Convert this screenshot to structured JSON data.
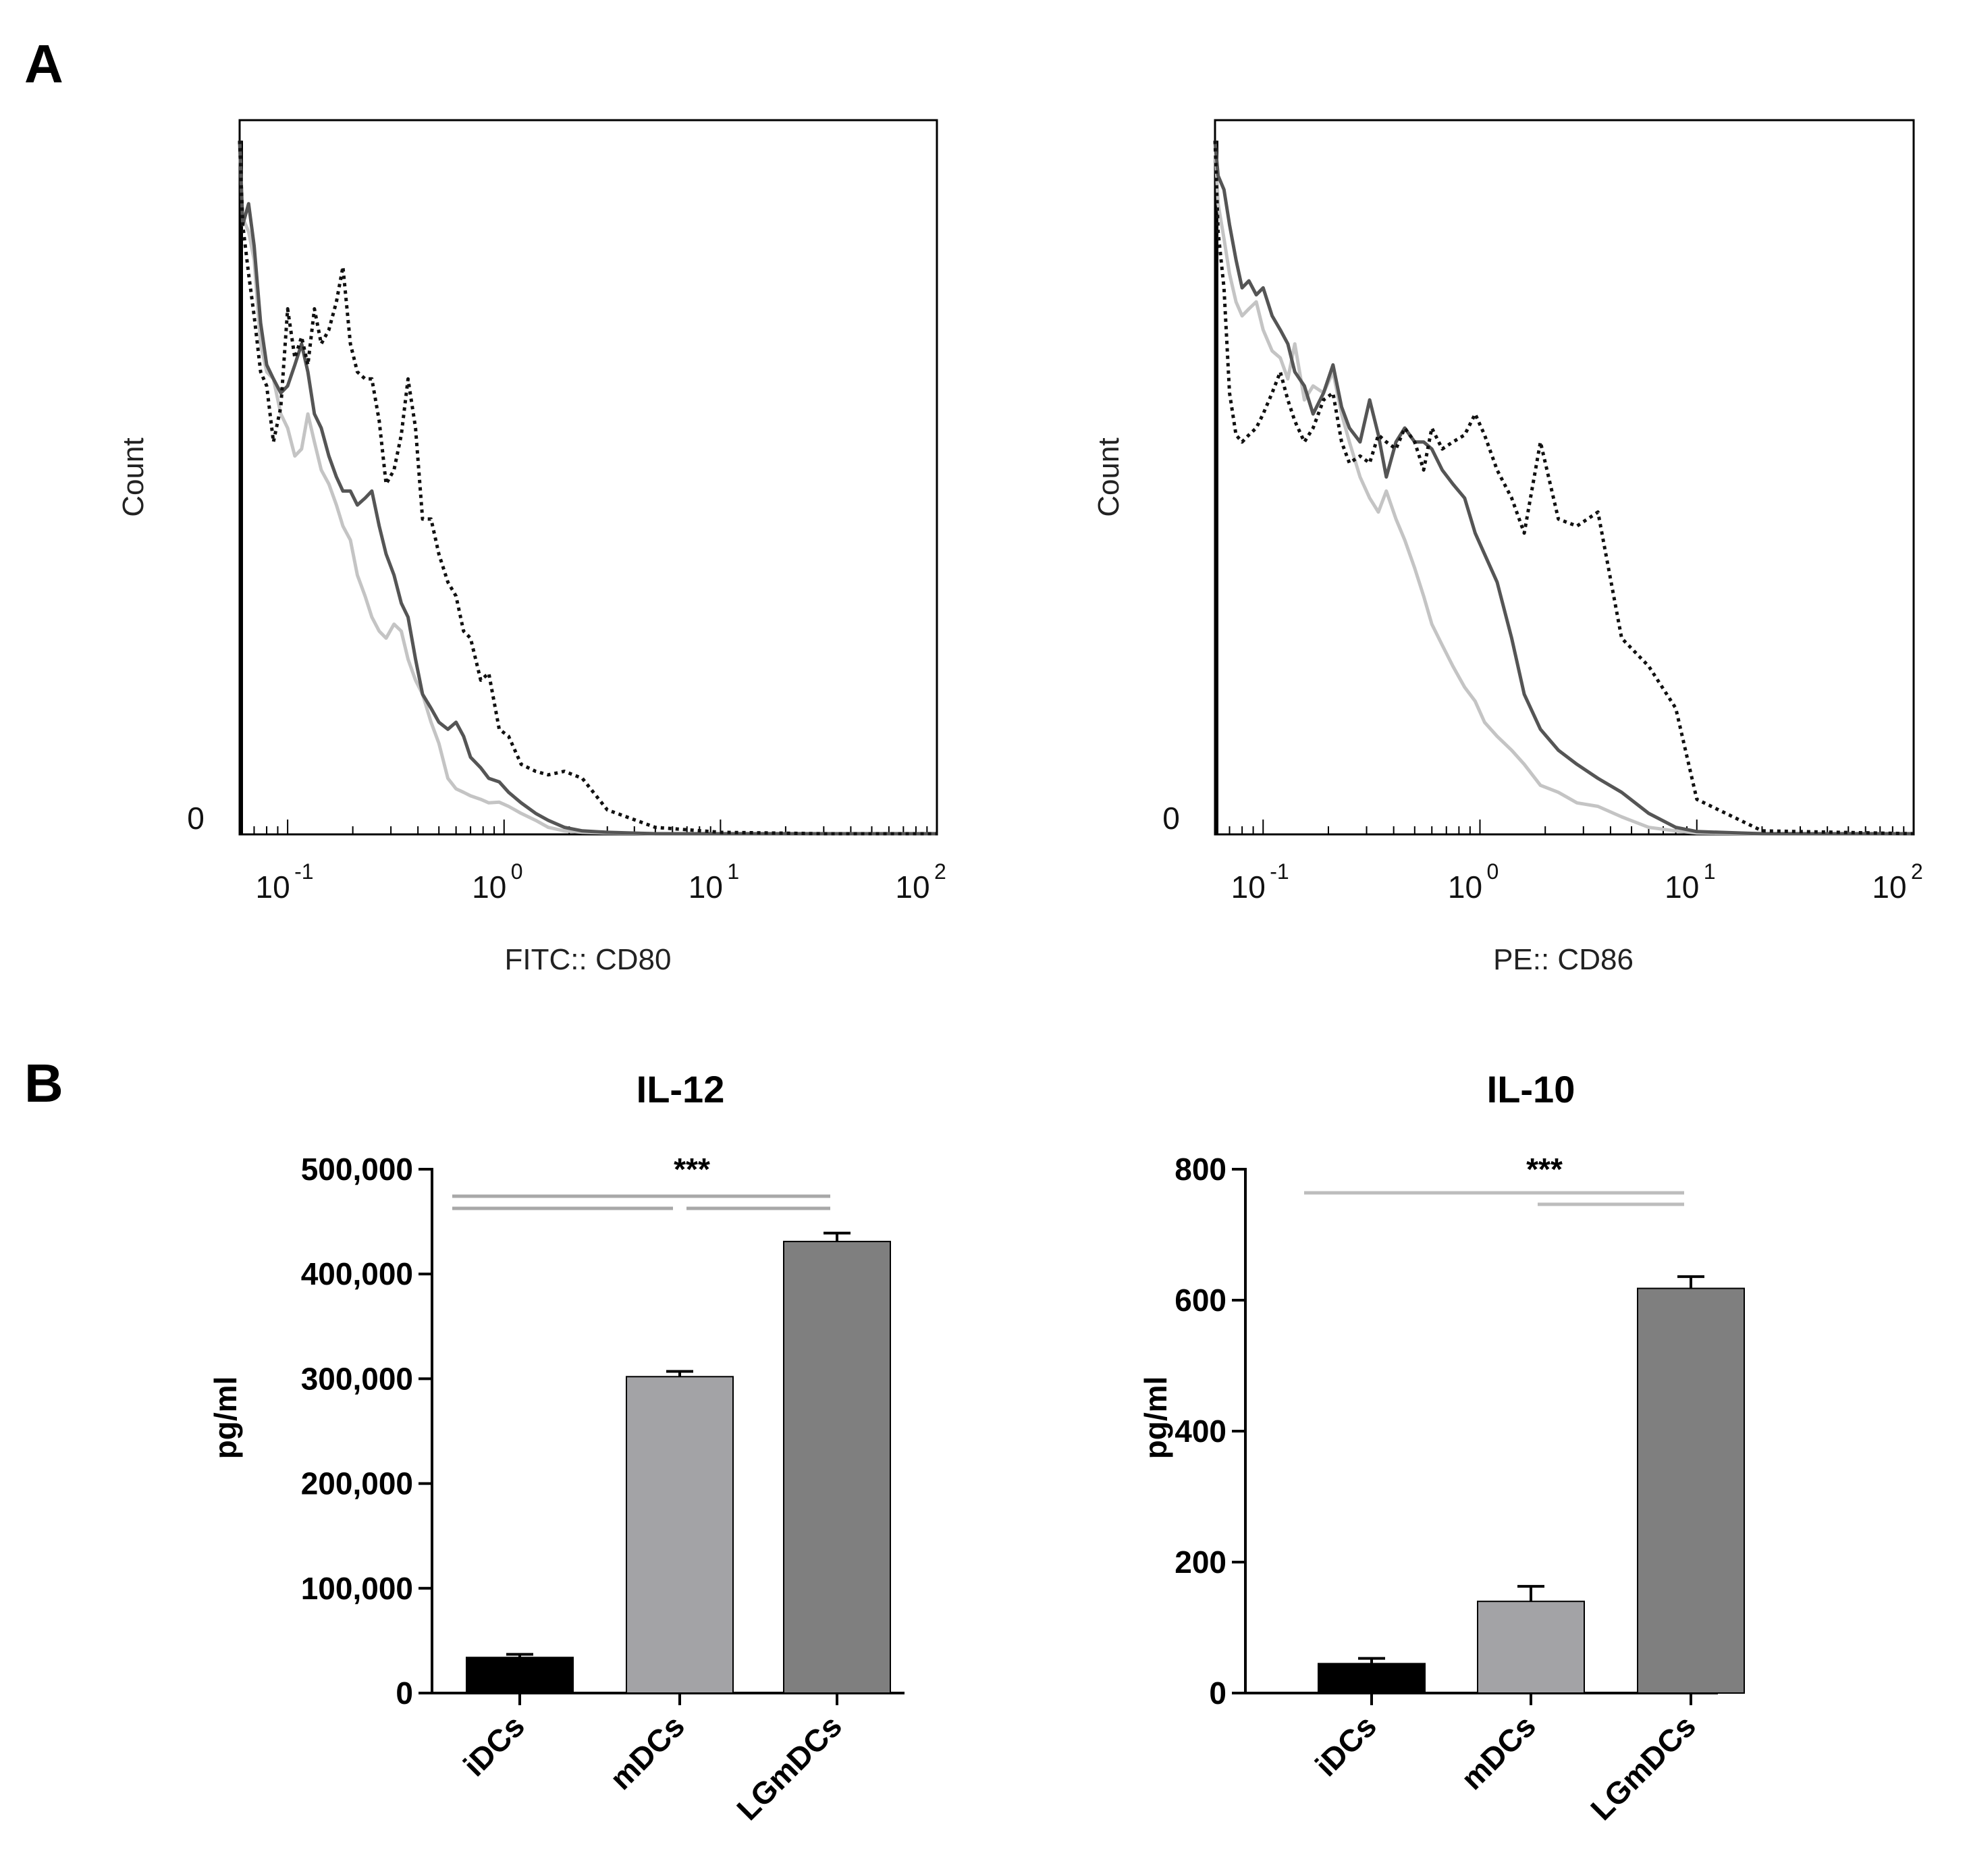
{
  "figure": {
    "panel_a_label": "A",
    "panel_b_label": "B"
  },
  "chart_data": [
    {
      "type": "line",
      "id": "cd80",
      "xlabel": "FITC:: CD80",
      "ylabel": "Count",
      "xscale": "log",
      "xlim": [
        0.06,
        100
      ],
      "ylim": [
        0,
        100
      ],
      "y_tick_label": "0",
      "x_ticks": [
        {
          "base": "10",
          "exp": "-1",
          "value": 0.1
        },
        {
          "base": "10",
          "exp": "0",
          "value": 1
        },
        {
          "base": "10",
          "exp": "1",
          "value": 10
        },
        {
          "base": "10",
          "exp": "2",
          "value": 100
        }
      ],
      "series": [
        {
          "name": "light gray",
          "color": "#c4c4c4",
          "dash": "none",
          "x": [
            0.06,
            0.062,
            0.066,
            0.07,
            0.075,
            0.08,
            0.086,
            0.093,
            0.1,
            0.108,
            0.116,
            0.124,
            0.133,
            0.143,
            0.155,
            0.168,
            0.18,
            0.195,
            0.21,
            0.228,
            0.245,
            0.265,
            0.285,
            0.31,
            0.335,
            0.36,
            0.39,
            0.42,
            0.46,
            0.5,
            0.55,
            0.6,
            0.65,
            0.7,
            0.78,
            0.85,
            0.95,
            1.05,
            1.2,
            1.4,
            1.6,
            1.9,
            2.3,
            3,
            5,
            10,
            30,
            100
          ],
          "y": [
            99,
            88,
            86,
            82,
            70,
            66,
            65,
            60,
            58,
            54,
            55,
            60,
            56,
            52,
            50,
            47,
            44,
            42,
            37,
            34,
            31,
            29,
            28,
            30,
            29,
            25,
            22,
            20,
            16,
            13,
            8,
            6.5,
            6,
            5.5,
            5,
            4.5,
            4.6,
            4,
            3,
            2,
            1,
            0.5,
            0.3,
            0.2,
            0.1,
            0.1,
            0.1,
            0.1
          ]
        },
        {
          "name": "dark gray",
          "color": "#555555",
          "dash": "none",
          "x": [
            0.06,
            0.062,
            0.066,
            0.07,
            0.075,
            0.08,
            0.086,
            0.093,
            0.1,
            0.108,
            0.116,
            0.124,
            0.133,
            0.143,
            0.155,
            0.168,
            0.18,
            0.195,
            0.21,
            0.228,
            0.245,
            0.265,
            0.285,
            0.31,
            0.335,
            0.36,
            0.39,
            0.42,
            0.46,
            0.5,
            0.55,
            0.6,
            0.65,
            0.7,
            0.78,
            0.85,
            0.95,
            1.05,
            1.2,
            1.4,
            1.6,
            1.9,
            2.3,
            3,
            5,
            10,
            30,
            100
          ],
          "y": [
            99,
            87,
            90,
            84,
            73,
            67,
            65,
            63,
            64,
            67,
            70,
            66,
            60,
            58,
            54,
            51,
            49,
            49,
            47,
            48,
            49,
            44,
            40,
            37,
            33,
            31,
            25,
            20,
            18,
            16,
            15,
            16,
            14,
            11,
            9.5,
            8,
            7.5,
            6,
            4.5,
            3,
            2,
            1,
            0.5,
            0.3,
            0.1,
            0.1,
            0.1,
            0.1
          ]
        },
        {
          "name": "dotted",
          "color": "#111111",
          "dash": "dotted",
          "x": [
            0.06,
            0.062,
            0.066,
            0.07,
            0.075,
            0.08,
            0.086,
            0.093,
            0.1,
            0.108,
            0.116,
            0.124,
            0.133,
            0.143,
            0.155,
            0.168,
            0.18,
            0.195,
            0.21,
            0.228,
            0.245,
            0.265,
            0.285,
            0.31,
            0.335,
            0.36,
            0.39,
            0.42,
            0.46,
            0.5,
            0.55,
            0.6,
            0.65,
            0.7,
            0.78,
            0.85,
            0.95,
            1.05,
            1.2,
            1.4,
            1.6,
            1.9,
            2.3,
            3,
            5,
            10,
            30,
            100
          ],
          "y": [
            99,
            87,
            80,
            74,
            66,
            64,
            56,
            61,
            75,
            68,
            71,
            67,
            75,
            70,
            72,
            76,
            81,
            70,
            66,
            65,
            65,
            59,
            50,
            52,
            57,
            65,
            58,
            45,
            45,
            40,
            36,
            34,
            29,
            28,
            22,
            23,
            15,
            14,
            10,
            9,
            8.5,
            9,
            8,
            3.5,
            1,
            0.3,
            0.1,
            0.1
          ]
        }
      ]
    },
    {
      "type": "line",
      "id": "cd86",
      "xlabel": "PE:: CD86",
      "ylabel": "Count",
      "xscale": "log",
      "xlim": [
        0.06,
        100
      ],
      "ylim": [
        0,
        100
      ],
      "y_tick_label": "0",
      "x_ticks": [
        {
          "base": "10",
          "exp": "-1",
          "value": 0.1
        },
        {
          "base": "10",
          "exp": "0",
          "value": 1
        },
        {
          "base": "10",
          "exp": "1",
          "value": 10
        },
        {
          "base": "10",
          "exp": "2",
          "value": 100
        }
      ],
      "series": [
        {
          "name": "light gray",
          "color": "#c4c4c4",
          "dash": "none",
          "x": [
            0.06,
            0.062,
            0.066,
            0.07,
            0.075,
            0.08,
            0.086,
            0.093,
            0.1,
            0.11,
            0.12,
            0.13,
            0.14,
            0.155,
            0.17,
            0.19,
            0.21,
            0.23,
            0.25,
            0.28,
            0.31,
            0.34,
            0.37,
            0.41,
            0.45,
            0.5,
            0.55,
            0.6,
            0.67,
            0.75,
            0.85,
            0.95,
            1.05,
            1.2,
            1.4,
            1.6,
            1.9,
            2.3,
            2.8,
            3.5,
            4.5,
            6,
            8,
            10,
            20,
            100
          ],
          "y": [
            99,
            90,
            85,
            80,
            76,
            74,
            75,
            76,
            72,
            69,
            68,
            65,
            70,
            62,
            64,
            63,
            66,
            60,
            56,
            51,
            48,
            46,
            49,
            45,
            42,
            38,
            34,
            30,
            27,
            24,
            21,
            19,
            16,
            14,
            12,
            10,
            7,
            6,
            4.5,
            4,
            2.5,
            1,
            0.5,
            0.2,
            0.1,
            0.1
          ]
        },
        {
          "name": "dark gray",
          "color": "#555555",
          "dash": "none",
          "x": [
            0.06,
            0.062,
            0.066,
            0.07,
            0.075,
            0.08,
            0.086,
            0.093,
            0.1,
            0.11,
            0.12,
            0.13,
            0.14,
            0.155,
            0.17,
            0.19,
            0.21,
            0.23,
            0.25,
            0.28,
            0.31,
            0.34,
            0.37,
            0.41,
            0.45,
            0.5,
            0.55,
            0.6,
            0.67,
            0.75,
            0.85,
            0.95,
            1.05,
            1.2,
            1.4,
            1.6,
            1.9,
            2.3,
            2.8,
            3.5,
            4.5,
            6,
            8,
            10,
            20,
            100
          ],
          "y": [
            99,
            94,
            92,
            87,
            82,
            78,
            79,
            77,
            78,
            74,
            72,
            70,
            66,
            64,
            60,
            63,
            67,
            61,
            58,
            56,
            62,
            57,
            51,
            56,
            58,
            56,
            56,
            55,
            52,
            50,
            48,
            43,
            40,
            36,
            28,
            20,
            15,
            12,
            10,
            8,
            6,
            3,
            1,
            0.4,
            0.1,
            0.1
          ]
        },
        {
          "name": "dotted",
          "color": "#111111",
          "dash": "dotted",
          "x": [
            0.06,
            0.062,
            0.066,
            0.07,
            0.075,
            0.08,
            0.086,
            0.093,
            0.1,
            0.11,
            0.12,
            0.13,
            0.14,
            0.155,
            0.17,
            0.19,
            0.21,
            0.23,
            0.25,
            0.28,
            0.31,
            0.34,
            0.37,
            0.41,
            0.45,
            0.5,
            0.55,
            0.6,
            0.67,
            0.75,
            0.85,
            0.95,
            1.05,
            1.2,
            1.4,
            1.6,
            1.9,
            2.3,
            2.8,
            3.5,
            4.5,
            6,
            8,
            10,
            20,
            100
          ],
          "y": [
            99,
            86,
            78,
            63,
            57,
            56,
            57,
            58,
            60,
            63,
            66,
            62,
            59,
            56,
            58,
            62,
            63,
            56,
            53,
            54,
            53,
            57,
            56,
            55,
            58,
            56,
            52,
            58,
            55,
            56,
            57,
            60,
            57,
            52,
            48,
            43,
            56,
            45,
            44,
            46,
            28,
            24,
            18,
            5,
            0.5,
            0.1
          ]
        }
      ]
    },
    {
      "type": "bar",
      "id": "il12",
      "title": "IL-12",
      "ylabel": "pg/ml",
      "ylim": [
        0,
        500000
      ],
      "yticks": [
        0,
        100000,
        200000,
        300000,
        400000,
        500000
      ],
      "ytick_labels": [
        "0",
        "100,000",
        "200,000",
        "300,000",
        "400,000",
        "500,000"
      ],
      "categories": [
        "iDCs",
        "mDCs",
        "LGmDCs"
      ],
      "values": [
        34000,
        302000,
        431000
      ],
      "errors": [
        3000,
        5000,
        8000
      ],
      "colors": [
        "#000000",
        "#a3a3a6",
        "#7f7f7f"
      ],
      "significance": {
        "label": "***",
        "lines": [
          {
            "from": 0,
            "to": 2,
            "level": 1
          },
          {
            "from": 0,
            "to": 1,
            "level": 0
          },
          {
            "from": 1,
            "to": 2,
            "level": 0
          }
        ]
      }
    },
    {
      "type": "bar",
      "id": "il10",
      "title": "IL-10",
      "ylabel": "pg/ml",
      "ylim": [
        0,
        800
      ],
      "yticks": [
        0,
        200,
        400,
        600,
        800
      ],
      "ytick_labels": [
        "0",
        "200",
        "400",
        "600",
        "800"
      ],
      "categories": [
        "iDCs",
        "mDCs",
        "LGmDCs"
      ],
      "values": [
        45,
        140,
        618
      ],
      "errors": [
        8,
        23,
        18
      ],
      "colors": [
        "#000000",
        "#a3a3a6",
        "#7f7f7f"
      ],
      "significance": {
        "label": "***",
        "lines": [
          {
            "from": 0,
            "to": 2,
            "level": 1
          },
          {
            "from": 1,
            "to": 2,
            "level": 0
          }
        ]
      }
    }
  ]
}
